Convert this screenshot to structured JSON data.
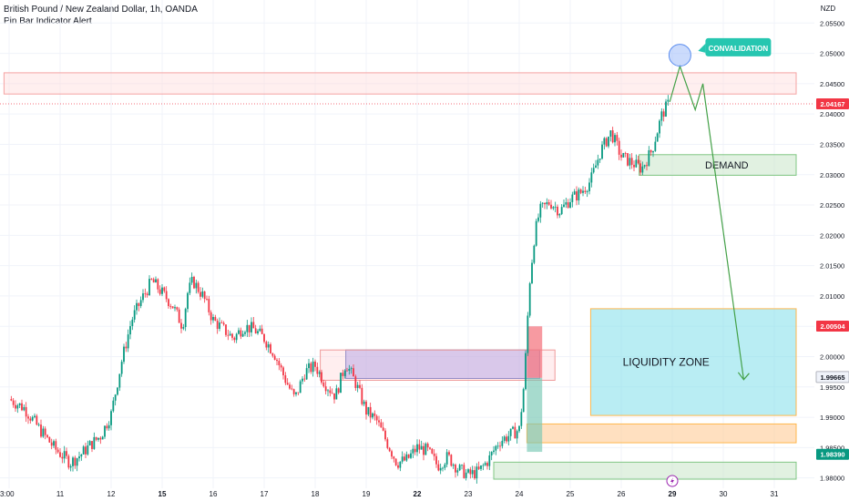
{
  "header": {
    "title": "British Pound / New Zealand Dollar, 1h, OANDA",
    "indicator": "Pin Bar Indicator Alert"
  },
  "chart_data": {
    "type": "candlestick",
    "currency_label": "NZD",
    "x_tick_labels": [
      "3:00",
      "11",
      "12",
      "15",
      "16",
      "17",
      "18",
      "19",
      "22",
      "23",
      "24",
      "25",
      "26",
      "29",
      "30",
      "31"
    ],
    "x_tick_positions_days": [
      0,
      1,
      2,
      3,
      4,
      5,
      6,
      7,
      8,
      9,
      10,
      11,
      12,
      13,
      14,
      15
    ],
    "y_ticks": [
      1.98,
      1.985,
      1.99,
      1.995,
      2.0,
      2.005,
      2.01,
      2.015,
      2.02,
      2.025,
      2.03,
      2.035,
      2.04,
      2.045,
      2.05,
      2.055
    ],
    "y_tick_labels": [
      "1.98000",
      "1.98500",
      "1.99000",
      "1.99500",
      "2.00000",
      "2.00500",
      "2.01000",
      "2.01500",
      "2.02000",
      "2.02500",
      "2.03000",
      "2.03500",
      "2.04000",
      "2.04500",
      "2.05000",
      "2.05500"
    ],
    "ylim": [
      1.9783,
      2.0588
    ],
    "price_badges": [
      {
        "label": "2.04167",
        "value": 2.04167,
        "color": "#f23645"
      },
      {
        "label": "2.00504",
        "value": 2.00504,
        "color": "#f23645"
      },
      {
        "label": "1.99665",
        "value": 1.99665,
        "color": "#ffffff"
      },
      {
        "label": "1.98390",
        "value": 1.9839,
        "color": "#089981"
      }
    ],
    "price_path": [
      [
        0,
        1.993
      ],
      [
        0.3,
        1.9915
      ],
      [
        0.6,
        1.988
      ],
      [
        0.9,
        1.9848
      ],
      [
        1.2,
        1.9825
      ],
      [
        1.4,
        1.9838
      ],
      [
        1.6,
        1.9855
      ],
      [
        1.8,
        1.987
      ],
      [
        2.0,
        1.9905
      ],
      [
        2.2,
        1.999
      ],
      [
        2.4,
        2.006
      ],
      [
        2.6,
        2.0095
      ],
      [
        2.8,
        2.0125
      ],
      [
        3.0,
        2.0105
      ],
      [
        3.2,
        2.0085
      ],
      [
        3.4,
        2.005
      ],
      [
        3.5,
        2.0105
      ],
      [
        3.6,
        2.0125
      ],
      [
        3.8,
        2.01
      ],
      [
        4.0,
        2.006
      ],
      [
        4.2,
        2.0045
      ],
      [
        4.4,
        2.003
      ],
      [
        4.6,
        2.005
      ],
      [
        4.8,
        2.0045
      ],
      [
        5.0,
        2.003
      ],
      [
        5.2,
        2.0005
      ],
      [
        5.4,
        1.9965
      ],
      [
        5.6,
        1.993
      ],
      [
        5.8,
        1.9975
      ],
      [
        6.0,
        1.9985
      ],
      [
        6.2,
        1.9955
      ],
      [
        6.4,
        1.9935
      ],
      [
        6.6,
        1.999
      ],
      [
        6.8,
        1.9955
      ],
      [
        7.0,
        1.991
      ],
      [
        7.2,
        1.9895
      ],
      [
        7.4,
        1.986
      ],
      [
        7.6,
        1.9825
      ],
      [
        7.8,
        1.983
      ],
      [
        8.0,
        1.985
      ],
      [
        8.2,
        1.9845
      ],
      [
        8.4,
        1.982
      ],
      [
        8.6,
        1.9835
      ],
      [
        8.8,
        1.9815
      ],
      [
        9.0,
        1.9805
      ],
      [
        9.2,
        1.981
      ],
      [
        9.4,
        1.983
      ],
      [
        9.6,
        1.986
      ],
      [
        9.8,
        1.987
      ],
      [
        10.0,
        1.988
      ],
      [
        10.1,
        1.996
      ],
      [
        10.2,
        2.012
      ],
      [
        10.3,
        2.02
      ],
      [
        10.4,
        2.024
      ],
      [
        10.6,
        2.0255
      ],
      [
        10.8,
        2.024
      ],
      [
        11.0,
        2.026
      ],
      [
        11.2,
        2.027
      ],
      [
        11.4,
        2.029
      ],
      [
        11.6,
        2.034
      ],
      [
        11.8,
        2.037
      ],
      [
        12.0,
        2.033
      ],
      [
        12.2,
        2.032
      ],
      [
        12.4,
        2.031
      ],
      [
        12.6,
        2.034
      ],
      [
        12.8,
        2.04
      ],
      [
        12.95,
        2.042
      ]
    ],
    "zones": [
      {
        "name": "resistance-zone",
        "x0": -0.1,
        "x1": 15.45,
        "y0": 2.0433,
        "y1": 2.0468,
        "fill": "rgba(255,220,220,0.45)",
        "stroke": "#f5a3a3"
      },
      {
        "name": "demand-zone",
        "label": "DEMAND",
        "x0": 12.35,
        "x1": 15.45,
        "y0": 2.0299,
        "y1": 2.0333,
        "fill": "rgba(200,230,201,0.55)",
        "stroke": "#81c784"
      },
      {
        "name": "liquidity-zone",
        "label": "LIQUIDITY ZONE",
        "x0": 11.4,
        "x1": 15.45,
        "y0": 1.9903,
        "y1": 2.0079,
        "fill": "rgba(128,222,234,0.55)",
        "stroke": "#ffb74d"
      },
      {
        "name": "blue-zone",
        "x0": 6.6,
        "x1": 10.4,
        "y0": 1.9964,
        "y1": 2.0011,
        "fill": "rgba(140,140,240,0.5)",
        "stroke": "#5c6bc0"
      },
      {
        "name": "pink-zone",
        "x0": 6.1,
        "x1": 10.7,
        "y0": 1.9961,
        "y1": 2.0011,
        "fill": "rgba(255,205,210,0.35)",
        "stroke": "#ef9a9a"
      },
      {
        "name": "orange-zone",
        "x0": 10.15,
        "x1": 15.45,
        "y0": 1.9858,
        "y1": 1.9889,
        "fill": "rgba(255,204,150,0.6)",
        "stroke": "#ffb74d"
      },
      {
        "name": "green-bottom-zone",
        "x0": 9.5,
        "x1": 15.45,
        "y0": 1.9798,
        "y1": 1.9826,
        "fill": "rgba(200,230,201,0.55)",
        "stroke": "#81c784"
      },
      {
        "name": "red-vertical-box",
        "x0": 10.15,
        "x1": 10.45,
        "y0": 1.9965,
        "y1": 2.005,
        "fill": "rgba(244,120,130,0.75)",
        "stroke": "none"
      },
      {
        "name": "teal-vertical-box",
        "x0": 10.15,
        "x1": 10.45,
        "y0": 1.9843,
        "y1": 1.9965,
        "fill": "rgba(120,200,180,0.65)",
        "stroke": "none"
      }
    ],
    "projection_path": [
      [
        12.95,
        2.042
      ],
      [
        13.15,
        2.0479
      ],
      [
        13.45,
        2.0407
      ],
      [
        13.6,
        2.045
      ],
      [
        14.4,
        1.9962
      ]
    ],
    "circle": {
      "x": 13.15,
      "y": 2.0497
    },
    "callout": {
      "label": "CONVALIDATION",
      "x": 13.65,
      "y": 2.051,
      "color": "#26c6b0"
    },
    "lightning_icon": {
      "x": 13.0,
      "y": 1.9795,
      "name": "lightning-icon"
    },
    "colors": {
      "up": "#089981",
      "down": "#f23645",
      "grid": "#f0f3fa",
      "axis_text": "#131722"
    }
  }
}
